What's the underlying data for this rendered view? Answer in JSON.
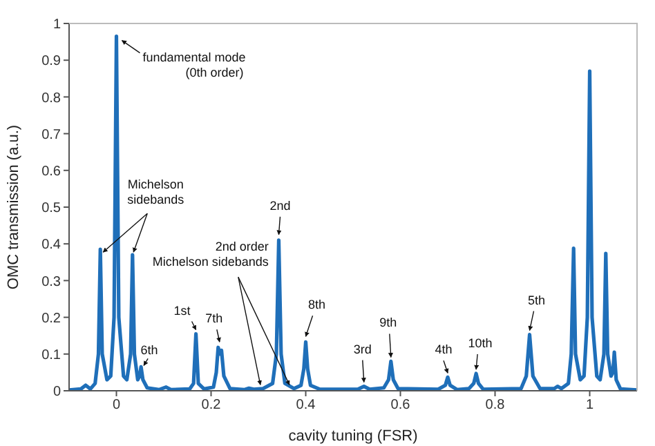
{
  "chart_data": {
    "type": "line",
    "xlabel": "cavity tuning (FSR)",
    "ylabel": "OMC transmission (a.u.)",
    "xlim": [
      -0.1,
      1.1
    ],
    "ylim": [
      0,
      1
    ],
    "xticks": [
      0,
      0.2,
      0.4,
      0.6,
      0.8,
      1
    ],
    "yticks": [
      0,
      0.1,
      0.2,
      0.3,
      0.4,
      0.5,
      0.6,
      0.7,
      0.8,
      0.9,
      1
    ],
    "series": [
      {
        "color": "#1f6fb9",
        "x": [
          -0.1,
          -0.075,
          -0.065,
          -0.055,
          -0.045,
          -0.038,
          -0.034,
          -0.03,
          -0.02,
          -0.012,
          -0.005,
          0,
          0.005,
          0.015,
          0.022,
          0.03,
          0.034,
          0.038,
          0.045,
          0.049,
          0.052,
          0.056,
          0.065,
          0.09,
          0.105,
          0.115,
          0.155,
          0.163,
          0.168,
          0.173,
          0.185,
          0.205,
          0.211,
          0.215,
          0.219,
          0.222,
          0.227,
          0.24,
          0.27,
          0.28,
          0.29,
          0.31,
          0.33,
          0.338,
          0.343,
          0.348,
          0.356,
          0.375,
          0.39,
          0.396,
          0.4,
          0.404,
          0.41,
          0.43,
          0.51,
          0.523,
          0.535,
          0.565,
          0.575,
          0.58,
          0.585,
          0.595,
          0.68,
          0.695,
          0.7,
          0.705,
          0.72,
          0.745,
          0.755,
          0.76,
          0.765,
          0.775,
          0.855,
          0.866,
          0.873,
          0.88,
          0.895,
          0.925,
          0.932,
          0.94,
          0.955,
          0.961,
          0.966,
          0.97,
          0.98,
          0.988,
          0.995,
          1,
          1.005,
          1.015,
          1.022,
          1.03,
          1.034,
          1.038,
          1.045,
          1.049,
          1.052,
          1.056,
          1.065,
          1.1
        ],
        "values": [
          0.002,
          0.005,
          0.015,
          0.005,
          0.02,
          0.1,
          0.385,
          0.1,
          0.03,
          0.04,
          0.2,
          0.965,
          0.2,
          0.04,
          0.03,
          0.1,
          0.37,
          0.1,
          0.03,
          0.04,
          0.065,
          0.03,
          0.008,
          0.003,
          0.01,
          0.003,
          0.005,
          0.02,
          0.155,
          0.02,
          0.005,
          0.01,
          0.05,
          0.118,
          0.1,
          0.11,
          0.04,
          0.006,
          0.003,
          0.007,
          0.004,
          0.006,
          0.02,
          0.1,
          0.41,
          0.1,
          0.02,
          0.006,
          0.015,
          0.06,
          0.133,
          0.06,
          0.015,
          0.004,
          0.004,
          0.012,
          0.004,
          0.008,
          0.03,
          0.08,
          0.03,
          0.006,
          0.004,
          0.015,
          0.037,
          0.015,
          0.003,
          0.006,
          0.02,
          0.047,
          0.02,
          0.004,
          0.006,
          0.04,
          0.153,
          0.04,
          0.006,
          0.006,
          0.012,
          0.006,
          0.02,
          0.1,
          0.388,
          0.1,
          0.03,
          0.04,
          0.2,
          0.87,
          0.2,
          0.04,
          0.03,
          0.1,
          0.374,
          0.1,
          0.04,
          0.05,
          0.105,
          0.03,
          0.005,
          0.002
        ]
      }
    ],
    "annotations": [
      {
        "text": "fundamental mode\n(0th order)",
        "x": 0,
        "y": 0.965
      },
      {
        "text": "Michelson\nsidebands",
        "x": -0.034,
        "y": 0.385
      },
      {
        "text": "6th",
        "x": 0.052,
        "y": 0.065
      },
      {
        "text": "1st",
        "x": 0.168,
        "y": 0.155
      },
      {
        "text": "7th",
        "x": 0.218,
        "y": 0.118
      },
      {
        "text": "2nd",
        "x": 0.343,
        "y": 0.41
      },
      {
        "text": "2nd order\nMichelson sidebands",
        "x": 0.31,
        "y": 0.005
      },
      {
        "text": "8th",
        "x": 0.4,
        "y": 0.133
      },
      {
        "text": "3rd",
        "x": 0.523,
        "y": 0.012
      },
      {
        "text": "9th",
        "x": 0.58,
        "y": 0.08
      },
      {
        "text": "4th",
        "x": 0.7,
        "y": 0.037
      },
      {
        "text": "10th",
        "x": 0.76,
        "y": 0.047
      },
      {
        "text": "5th",
        "x": 0.873,
        "y": 0.153
      }
    ]
  }
}
